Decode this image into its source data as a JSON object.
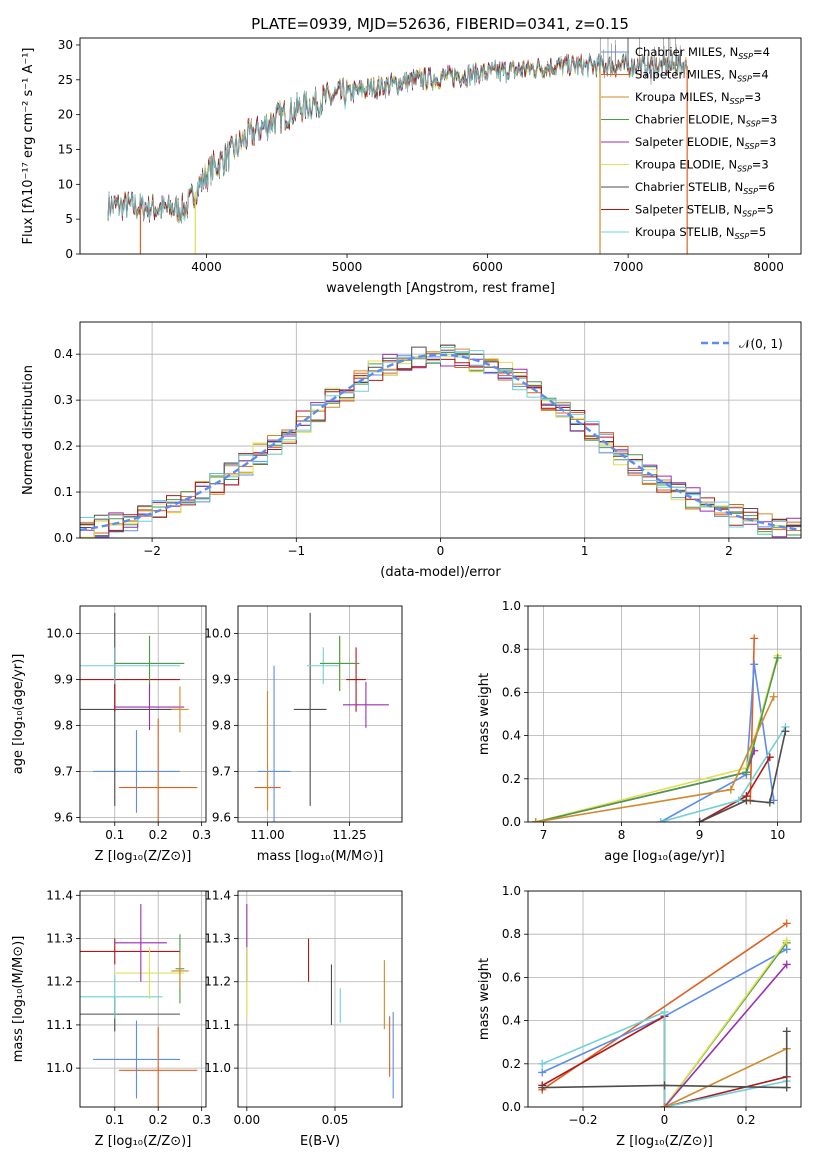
{
  "title": "PLATE=0939, MJD=52636, FIBERID=0341, z=0.15",
  "colors": {
    "chabrier_miles": "#5b8def",
    "salpeter_miles": "#e06020",
    "kroupa_miles": "#d08a2a",
    "chabrier_elodie": "#4a9a4a",
    "salpeter_elodie": "#9a2fb0",
    "kroupa_elodie": "#e0e050",
    "chabrier_stelib": "#4d4d4d",
    "salpeter_stelib": "#b01818",
    "kroupa_stelib": "#6fd0d8",
    "n01": "#5b8def"
  },
  "chart_data": [
    {
      "id": "spectrum",
      "type": "line",
      "xlabel": "wavelength [Angstrom, rest frame]",
      "ylabel": "Flux [fλ10⁻¹⁷ erg cm⁻² s⁻¹ A⁻¹]",
      "xlim": [
        3100,
        8230
      ],
      "ylim": [
        0,
        31
      ],
      "xticks": [
        4000,
        5000,
        6000,
        7000,
        8000
      ],
      "yticks": [
        0,
        5,
        10,
        15,
        20,
        25,
        30
      ],
      "legend": [
        "Chabrier MILES, N_SSP=4",
        "Salpeter MILES, N_SSP=4",
        "Kroupa MILES, N_SSP=3",
        "Chabrier ELODIE, N_SSP=3",
        "Salpeter ELODIE, N_SSP=3",
        "Kroupa ELODIE, N_SSP=3",
        "Chabrier STELIB, N_SSP=6",
        "Salpeter STELIB, N_SSP=5",
        "Kroupa STELIB, N_SSP=5"
      ],
      "legend_placement": "top-right",
      "continuum": [
        [
          3300,
          7
        ],
        [
          3500,
          6.8
        ],
        [
          3700,
          6.5
        ],
        [
          3850,
          6.5
        ],
        [
          3950,
          10
        ],
        [
          4050,
          12.5
        ],
        [
          4150,
          14
        ],
        [
          4300,
          17
        ],
        [
          4500,
          19.5
        ],
        [
          4800,
          22
        ],
        [
          5100,
          23.5
        ],
        [
          5500,
          25
        ],
        [
          6000,
          26
        ],
        [
          6500,
          27
        ],
        [
          7000,
          27
        ],
        [
          7400,
          27
        ]
      ]
    },
    {
      "id": "residuals",
      "type": "line",
      "xlabel": "(data-model)/error",
      "ylabel": "Normed distribution",
      "xlim": [
        -2.5,
        2.5
      ],
      "ylim": [
        0,
        0.47
      ],
      "xticks": [
        -2,
        -1,
        0,
        1,
        2
      ],
      "yticks": [
        0.0,
        0.1,
        0.2,
        0.3,
        0.4
      ],
      "legend": [
        "𝒩(0, 1)"
      ],
      "legend_placement": "top-right",
      "grid": true
    },
    {
      "id": "age_vs_z",
      "type": "scatter",
      "xlabel": "Z [log₁₀(Z/Z⊙)]",
      "ylabel": "age  [log₁₀(age/yr)]",
      "xlim": [
        0.02,
        0.31
      ],
      "ylim": [
        9.59,
        10.06
      ],
      "xticks": [
        0.1,
        0.2,
        0.3
      ],
      "yticks": [
        9.6,
        9.7,
        9.8,
        9.9,
        10.0
      ],
      "points": [
        {
          "c": "chabrier_miles",
          "x": 0.15,
          "xerr": 0.1,
          "y": 9.7,
          "yerr": 0.09
        },
        {
          "c": "salpeter_miles",
          "x": 0.2,
          "xerr": 0.09,
          "y": 9.665,
          "yerr": 0.15
        },
        {
          "c": "chabrier_stelib",
          "x": 0.1,
          "xerr": 0.15,
          "y": 9.835,
          "yerr": 0.21
        },
        {
          "c": "salpeter_stelib",
          "x": 0.1,
          "xerr": 0.15,
          "y": 9.9,
          "yerr": 0.07
        },
        {
          "c": "kroupa_stelib",
          "x": 0.1,
          "xerr": 0.15,
          "y": 9.93,
          "yerr": 0.04
        },
        {
          "c": "kroupa_elodie",
          "x": 0.18,
          "xerr": 0.08,
          "y": 9.935,
          "yerr": 0.06
        },
        {
          "c": "chabrier_elodie",
          "x": 0.18,
          "xerr": 0.08,
          "y": 9.935,
          "yerr": 0.06
        },
        {
          "c": "salpeter_elodie",
          "x": 0.18,
          "xerr": 0.08,
          "y": 9.84,
          "yerr": 0.05
        },
        {
          "c": "kroupa_miles",
          "x": 0.25,
          "xerr": 0.02,
          "y": 9.835,
          "yerr": 0.05
        }
      ]
    },
    {
      "id": "age_vs_mass",
      "type": "scatter",
      "xlabel": "mass [log₁₀(M/M⊙)]",
      "ylabel": "",
      "xlim": [
        10.91,
        11.41
      ],
      "ylim": [
        9.59,
        10.06
      ],
      "xticks": [
        11.0,
        11.25
      ],
      "yticks": [
        9.6,
        9.7,
        9.8,
        9.9,
        10.0
      ],
      "points": [
        {
          "c": "chabrier_miles",
          "x": 11.02,
          "xerr": 0.05,
          "y": 9.7,
          "yerr": 0.23
        },
        {
          "c": "salpeter_miles",
          "x": 11.0,
          "xerr": 0.04,
          "y": 9.665,
          "yerr": 0.05
        },
        {
          "c": "kroupa_miles",
          "x": 11.0,
          "xerr": 0.0,
          "y": 9.745,
          "yerr": 0.13
        },
        {
          "c": "chabrier_stelib",
          "x": 11.13,
          "xerr": 0.05,
          "y": 9.835,
          "yerr": 0.21
        },
        {
          "c": "salpeter_stelib",
          "x": 11.27,
          "xerr": 0.03,
          "y": 9.9,
          "yerr": 0.07
        },
        {
          "c": "kroupa_stelib",
          "x": 11.17,
          "xerr": 0.05,
          "y": 9.93,
          "yerr": 0.04
        },
        {
          "c": "kroupa_elodie",
          "x": 11.22,
          "xerr": 0.06,
          "y": 9.935,
          "yerr": 0.06
        },
        {
          "c": "chabrier_elodie",
          "x": 11.22,
          "xerr": 0.06,
          "y": 9.935,
          "yerr": 0.06
        },
        {
          "c": "salpeter_elodie",
          "x": 11.3,
          "xerr": 0.07,
          "y": 9.845,
          "yerr": 0.05
        }
      ]
    },
    {
      "id": "mass_weight_vs_age",
      "type": "line",
      "xlabel": "age  [log₁₀(age/yr)]",
      "ylabel": "mass weight",
      "xlim": [
        6.8,
        10.3
      ],
      "ylim": [
        0,
        1
      ],
      "xticks": [
        7,
        8,
        9,
        10
      ],
      "yticks": [
        0.0,
        0.2,
        0.4,
        0.6,
        0.8,
        1.0
      ],
      "series": [
        {
          "c": "salpeter_miles",
          "x": [
            9.0,
            9.6,
            9.65,
            9.7
          ],
          "y": [
            0.0,
            0.1,
            0.1,
            0.85
          ]
        },
        {
          "c": "chabrier_miles",
          "x": [
            8.5,
            9.6,
            9.7,
            9.95
          ],
          "y": [
            0.0,
            0.22,
            0.73,
            0.1
          ]
        },
        {
          "c": "salpeter_elodie",
          "x": [
            6.9,
            9.6,
            9.7
          ],
          "y": [
            0.0,
            0.23,
            0.33
          ]
        },
        {
          "c": "kroupa_elodie",
          "x": [
            6.9,
            9.6,
            10.0
          ],
          "y": [
            0.0,
            0.25,
            0.77
          ]
        },
        {
          "c": "chabrier_elodie",
          "x": [
            6.9,
            9.6,
            10.0
          ],
          "y": [
            0.0,
            0.23,
            0.76
          ]
        },
        {
          "c": "salpeter_stelib",
          "x": [
            9.0,
            9.6,
            9.9
          ],
          "y": [
            0.0,
            0.12,
            0.3
          ]
        },
        {
          "c": "kroupa_stelib",
          "x": [
            8.5,
            9.5,
            10.1
          ],
          "y": [
            0.0,
            0.1,
            0.44
          ]
        },
        {
          "c": "chabrier_stelib",
          "x": [
            9.0,
            9.6,
            9.9,
            10.1
          ],
          "y": [
            0.0,
            0.1,
            0.09,
            0.42
          ]
        },
        {
          "c": "kroupa_miles",
          "x": [
            6.9,
            9.4,
            9.95
          ],
          "y": [
            0.0,
            0.15,
            0.58
          ]
        }
      ]
    },
    {
      "id": "mass_vs_z",
      "type": "scatter",
      "xlabel": "Z [log₁₀(Z/Z⊙)]",
      "ylabel": "mass [log₁₀(M/M⊙)]",
      "xlim": [
        0.02,
        0.31
      ],
      "ylim": [
        10.91,
        11.41
      ],
      "xticks": [
        0.1,
        0.2,
        0.3
      ],
      "yticks": [
        11.0,
        11.1,
        11.2,
        11.3,
        11.4
      ],
      "points": [
        {
          "c": "chabrier_miles",
          "x": 0.15,
          "xerr": 0.1,
          "y": 11.02,
          "yerr": 0.09
        },
        {
          "c": "salpeter_miles",
          "x": 0.2,
          "xerr": 0.09,
          "y": 10.995,
          "yerr": 0.1
        },
        {
          "c": "chabrier_stelib",
          "x": 0.1,
          "xerr": 0.15,
          "y": 11.125,
          "yerr": 0.04
        },
        {
          "c": "salpeter_stelib",
          "x": 0.1,
          "xerr": 0.15,
          "y": 11.27,
          "yerr": 0.03
        },
        {
          "c": "kroupa_stelib",
          "x": 0.1,
          "xerr": 0.11,
          "y": 11.165,
          "yerr": 0.05
        },
        {
          "c": "kroupa_elodie",
          "x": 0.18,
          "xerr": 0.08,
          "y": 11.22,
          "yerr": 0.06
        },
        {
          "c": "chabrier_elodie",
          "x": 0.25,
          "xerr": 0.01,
          "y": 11.23,
          "yerr": 0.08
        },
        {
          "c": "salpeter_elodie",
          "x": 0.16,
          "xerr": 0.06,
          "y": 11.29,
          "yerr": 0.09
        },
        {
          "c": "kroupa_miles",
          "x": 0.25,
          "xerr": 0.02,
          "y": 11.225,
          "yerr": 0.04
        }
      ]
    },
    {
      "id": "mass_vs_ebv",
      "type": "scatter",
      "xlabel": "E(B-V)",
      "ylabel": "",
      "xlim": [
        -0.005,
        0.088
      ],
      "ylim": [
        10.91,
        11.41
      ],
      "xticks": [
        0.0,
        0.05
      ],
      "yticks": [
        11.0,
        11.1,
        11.2,
        11.3,
        11.4
      ],
      "points": [
        {
          "c": "salpeter_elodie",
          "x": 0.0,
          "xerr": 0,
          "y": 11.29,
          "yerr": 0.09
        },
        {
          "c": "kroupa_elodie",
          "x": 0.0,
          "xerr": 0,
          "y": 11.2,
          "yerr": 0.08
        },
        {
          "c": "salpeter_stelib",
          "x": 0.035,
          "xerr": 0,
          "y": 11.25,
          "yerr": 0.05
        },
        {
          "c": "chabrier_stelib",
          "x": 0.048,
          "xerr": 0,
          "y": 11.17,
          "yerr": 0.07
        },
        {
          "c": "kroupa_stelib",
          "x": 0.053,
          "xerr": 0,
          "y": 11.145,
          "yerr": 0.04
        },
        {
          "c": "kroupa_miles",
          "x": 0.078,
          "xerr": 0,
          "y": 11.17,
          "yerr": 0.08
        },
        {
          "c": "salpeter_miles",
          "x": 0.081,
          "xerr": 0,
          "y": 11.05,
          "yerr": 0.07
        },
        {
          "c": "chabrier_miles",
          "x": 0.083,
          "xerr": 0,
          "y": 11.03,
          "yerr": 0.1
        }
      ]
    },
    {
      "id": "mass_weight_vs_z",
      "type": "line",
      "xlabel": "Z [log₁₀(Z/Z⊙)]",
      "ylabel": "mass weight",
      "xlim": [
        -0.335,
        0.335
      ],
      "ylim": [
        0,
        1
      ],
      "xticks": [
        -0.2,
        0.0,
        0.2
      ],
      "yticks": [
        0.0,
        0.2,
        0.4,
        0.6,
        0.8,
        1.0
      ],
      "series": [
        {
          "c": "salpeter_miles",
          "x": [
            -0.3,
            0.3
          ],
          "y": [
            0.08,
            0.85
          ]
        },
        {
          "c": "chabrier_miles",
          "x": [
            -0.3,
            0.0,
            0.3
          ],
          "y": [
            0.16,
            0.42,
            0.73
          ]
        },
        {
          "c": "salpeter_stelib",
          "x": [
            -0.3,
            0.0,
            0.0,
            0.3
          ],
          "y": [
            0.1,
            0.42,
            0.0,
            0.14
          ]
        },
        {
          "c": "kroupa_stelib",
          "x": [
            -0.3,
            0.0,
            0.0,
            0.3
          ],
          "y": [
            0.2,
            0.44,
            0.0,
            0.12
          ]
        },
        {
          "c": "chabrier_elodie",
          "x": [
            0.0,
            0.3
          ],
          "y": [
            0.0,
            0.76
          ]
        },
        {
          "c": "kroupa_elodie",
          "x": [
            0.0,
            0.3
          ],
          "y": [
            0.0,
            0.77
          ]
        },
        {
          "c": "salpeter_elodie",
          "x": [
            0.0,
            0.3
          ],
          "y": [
            0.0,
            0.66
          ]
        },
        {
          "c": "kroupa_miles",
          "x": [
            0.0,
            0.3
          ],
          "y": [
            0.0,
            0.27
          ]
        },
        {
          "c": "chabrier_stelib",
          "x": [
            -0.3,
            0.0,
            0.3,
            0.3
          ],
          "y": [
            0.09,
            0.1,
            0.09,
            0.35
          ]
        }
      ]
    }
  ]
}
